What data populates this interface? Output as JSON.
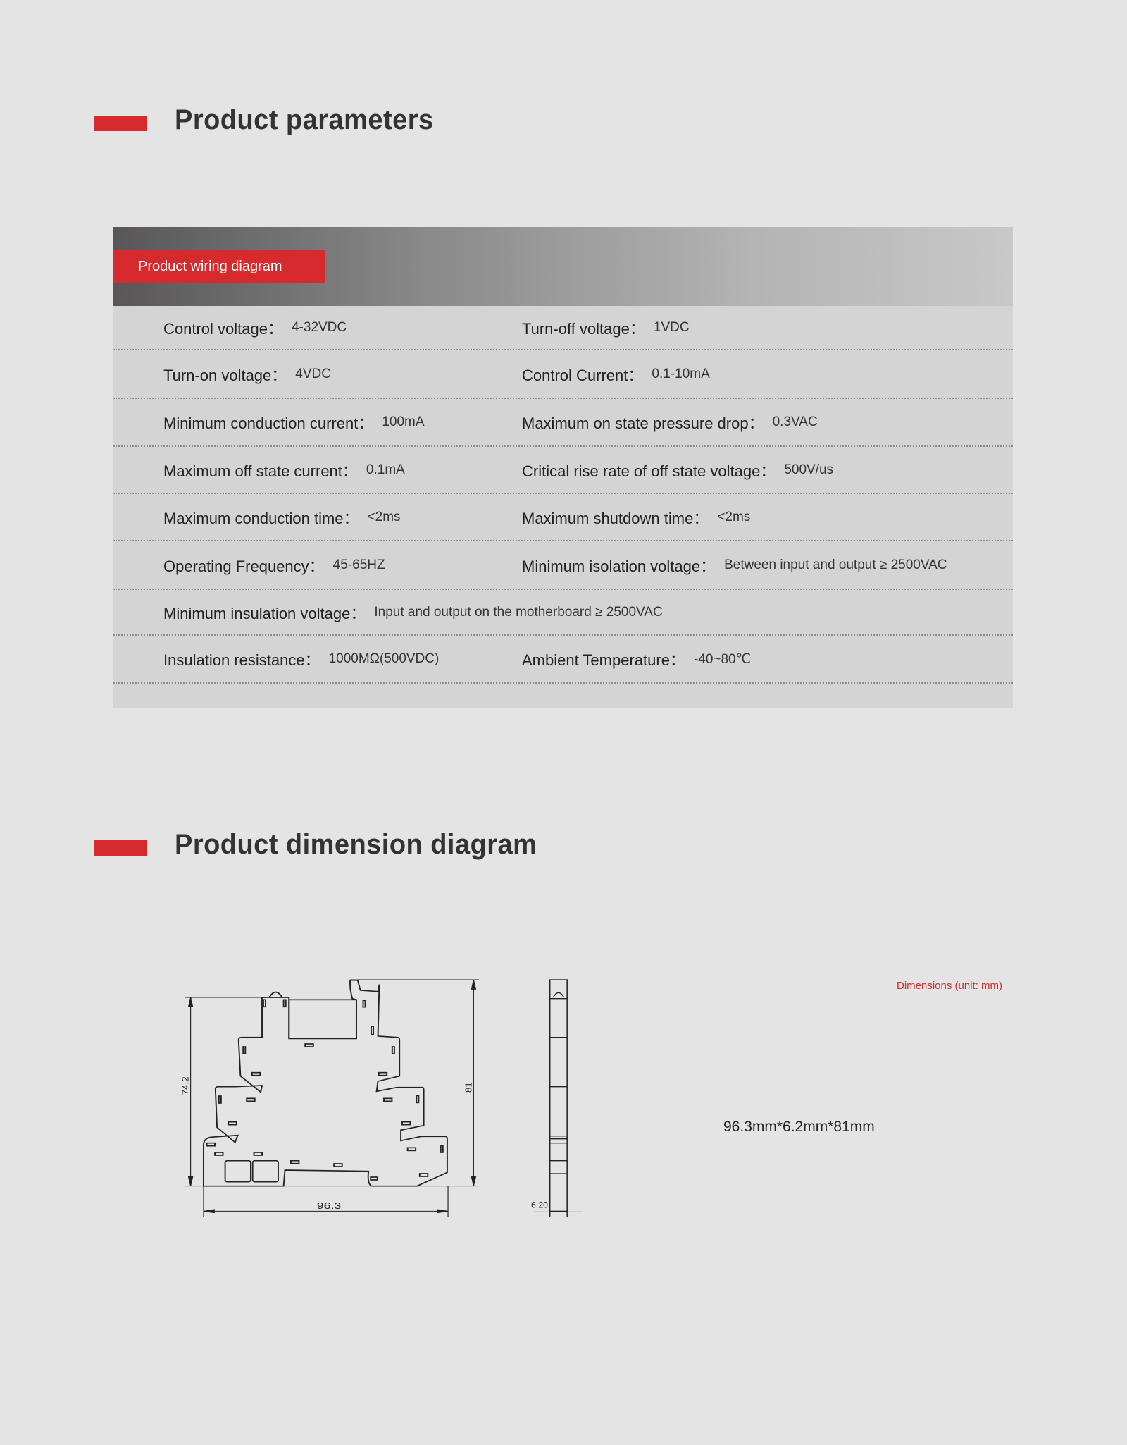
{
  "sections": {
    "parameters_title": "Product parameters",
    "dimension_title": "Product dimension diagram"
  },
  "table": {
    "header_label": "Product wiring diagram",
    "rows": [
      [
        {
          "k": "Control voltage：",
          "v": "4-32VDC"
        },
        {
          "k": "Turn-off voltage：",
          "v": "1VDC"
        }
      ],
      [
        {
          "k": "Turn-on voltage：",
          "v": "4VDC"
        },
        {
          "k": "Control Current：",
          "v": "0.1-10mA"
        }
      ],
      [
        {
          "k": "Minimum conduction current：",
          "v": "100mA"
        },
        {
          "k": "Maximum on state pressure drop：",
          "v": "0.3VAC"
        }
      ],
      [
        {
          "k": "Maximum off state current：",
          "v": "0.1mA"
        },
        {
          "k": "Critical rise rate of off state voltage：",
          "v": "500V/us"
        }
      ],
      [
        {
          "k": "Maximum conduction time：",
          "v": "<2ms"
        },
        {
          "k": "Maximum shutdown time：",
          "v": "<2ms"
        }
      ],
      [
        {
          "k": "Operating Frequency：",
          "v": "45-65HZ"
        },
        {
          "k": "Minimum isolation voltage：",
          "v": "Between input and output ≥ 2500VAC"
        }
      ],
      [
        {
          "k": "Minimum insulation voltage：",
          "v": "Input and output on the motherboard ≥ 2500VAC"
        }
      ],
      [
        {
          "k": "Insulation resistance：",
          "v": "1000MΩ(500VDC)"
        },
        {
          "k": "Ambient Temperature：",
          "v": "-40~80℃"
        }
      ]
    ]
  },
  "diagram": {
    "height_left": "74.2",
    "height_right": "81",
    "width": "96.3",
    "thickness": "6.20",
    "unit_note": "Dimensions (unit: mm)",
    "overall": "96.3mm*6.2mm*81mm"
  },
  "colors": {
    "accent": "#d62a2f",
    "background": "#e4e4e4",
    "table_bg": "#d4d4d4"
  }
}
